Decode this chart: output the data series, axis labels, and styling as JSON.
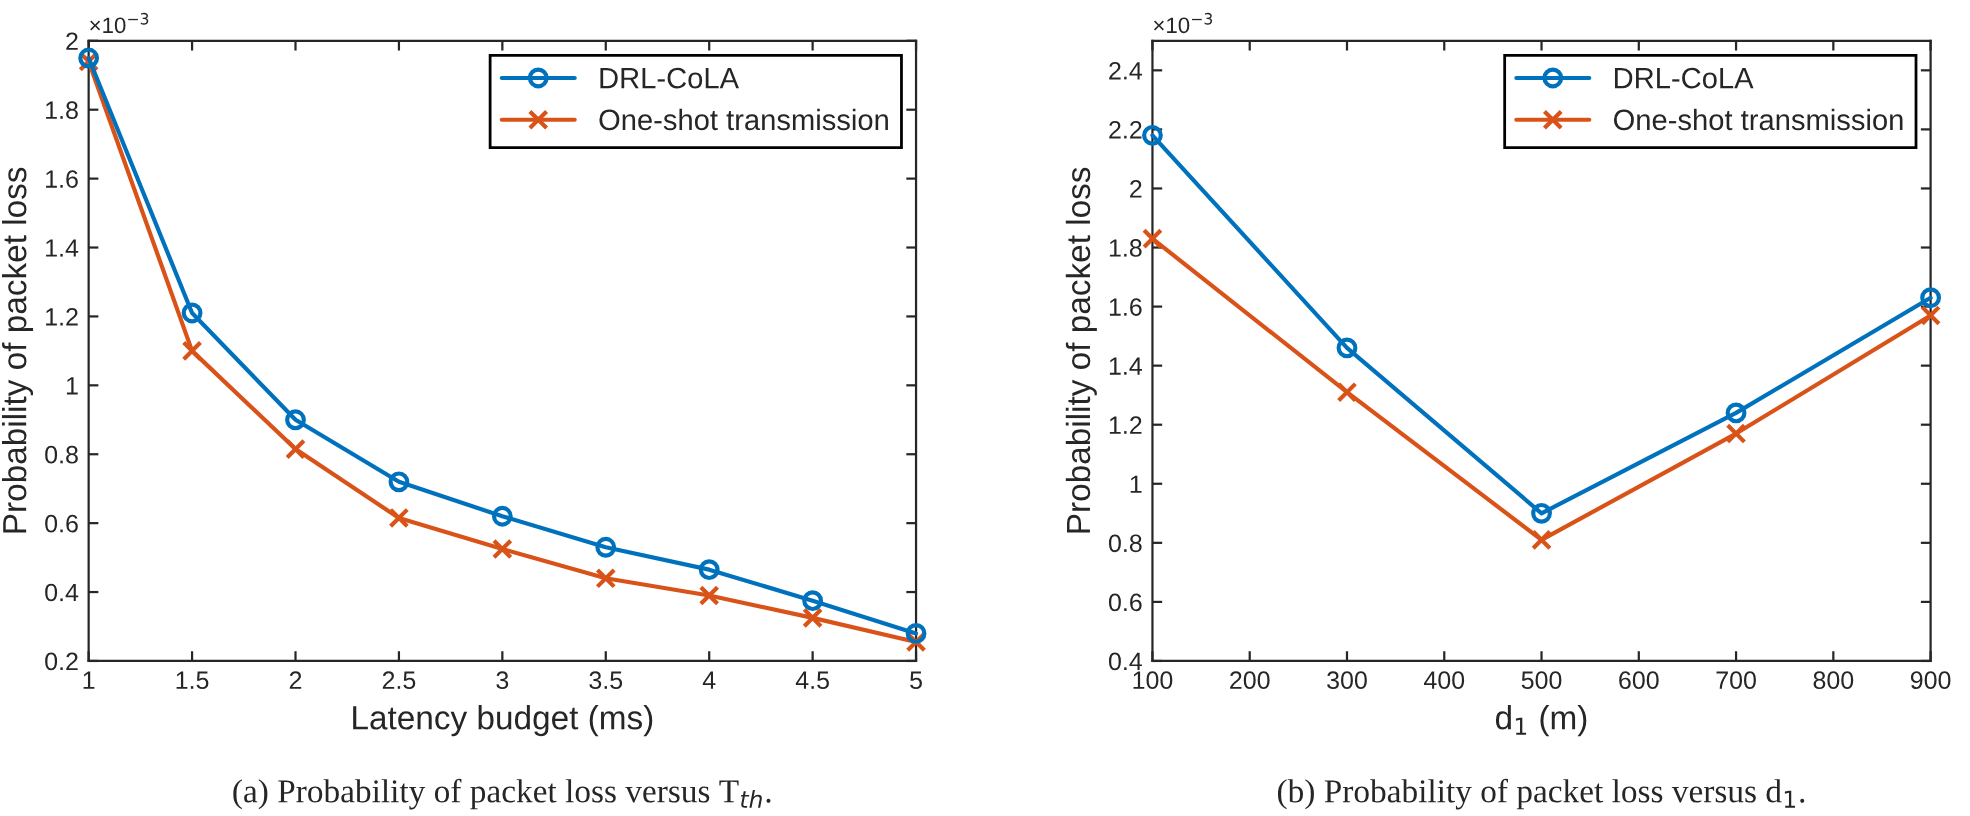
{
  "chart_data": [
    {
      "type": "line",
      "xlabel": "Latency budget (ms)",
      "ylabel": "Probability of packet loss",
      "x": [
        1,
        1.5,
        2,
        2.5,
        3,
        3.5,
        4,
        4.5,
        5
      ],
      "series": [
        {
          "name": "DRL-CoLA",
          "color": "#0072bd",
          "marker": "circle",
          "values": [
            1.95,
            1.21,
            0.9,
            0.72,
            0.62,
            0.53,
            0.465,
            0.375,
            0.28
          ]
        },
        {
          "name": "One-shot transmission",
          "color": "#d95319",
          "marker": "cross",
          "values": [
            1.94,
            1.1,
            0.815,
            0.615,
            0.525,
            0.44,
            0.39,
            0.325,
            0.255
          ]
        }
      ],
      "xlim": [
        1,
        5
      ],
      "xticks": [
        1,
        1.5,
        2,
        2.5,
        3,
        3.5,
        4,
        4.5,
        5
      ],
      "ylim": [
        0.2,
        2
      ],
      "yticks": [
        0.2,
        0.4,
        0.6,
        0.8,
        1,
        1.2,
        1.4,
        1.6,
        1.8,
        2
      ],
      "grid": false,
      "legend": "top right",
      "line_style": "solid",
      "annotations": [
        "×10$^{−3}$",
        "(a) Probability of packet loss versus T$_{th}$."
      ]
    },
    {
      "type": "line",
      "xlabel": "d$_{1}$ (m)",
      "ylabel": "Probability of packet loss",
      "x": [
        100,
        300,
        500,
        700,
        900
      ],
      "series": [
        {
          "name": "DRL-CoLA",
          "color": "#0072bd",
          "marker": "circle",
          "values": [
            2.18,
            1.46,
            0.9,
            1.24,
            1.63
          ]
        },
        {
          "name": "One-shot transmission",
          "color": "#d95319",
          "marker": "cross",
          "values": [
            1.83,
            1.31,
            0.81,
            1.17,
            1.57
          ]
        }
      ],
      "xlim": [
        100,
        900
      ],
      "xticks": [
        100,
        200,
        300,
        400,
        500,
        600,
        700,
        800,
        900
      ],
      "ylim": [
        0.4,
        2.5
      ],
      "yticks": [
        0.4,
        0.6,
        0.8,
        1,
        1.2,
        1.4,
        1.6,
        1.8,
        2,
        2.2,
        2.4
      ],
      "grid": false,
      "legend": "top right",
      "line_style": "solid",
      "annotations": [
        "×10$^{−3}$",
        "(b) Probability of packet loss versus d$_{1}$."
      ]
    }
  ]
}
